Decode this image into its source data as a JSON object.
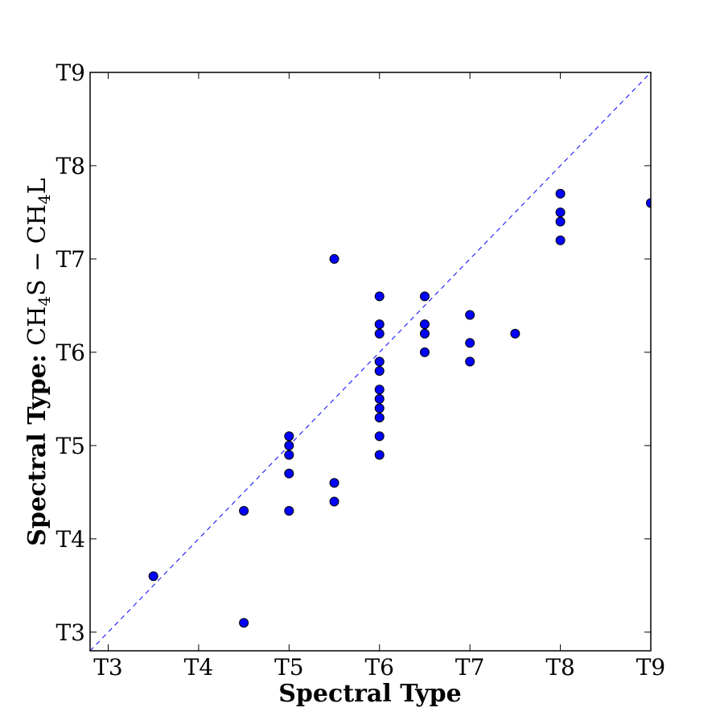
{
  "chart_data": {
    "type": "scatter",
    "title": "",
    "xlabel": "Spectral Type",
    "ylabel": {
      "bold": "Spectral Type: ",
      "math": [
        "CH",
        "4",
        "S − CH",
        "4",
        "L"
      ]
    },
    "xlim": [
      2.8,
      9.0
    ],
    "ylim": [
      2.8,
      9.0
    ],
    "ticks": [
      3,
      4,
      5,
      6,
      7,
      8,
      9
    ],
    "tick_labels": [
      "T3",
      "T4",
      "T5",
      "T6",
      "T7",
      "T8",
      "T9"
    ],
    "grid": false,
    "reference_line": {
      "from": [
        2.8,
        2.8
      ],
      "to": [
        9.0,
        9.0
      ],
      "style": "dashed",
      "color": "#0000ff"
    },
    "marker_color": "#0000ff",
    "points": [
      {
        "x": 3.5,
        "y": 3.6
      },
      {
        "x": 4.5,
        "y": 4.3
      },
      {
        "x": 4.5,
        "y": 3.1
      },
      {
        "x": 5.0,
        "y": 5.1
      },
      {
        "x": 5.0,
        "y": 5.0
      },
      {
        "x": 5.0,
        "y": 4.9
      },
      {
        "x": 5.0,
        "y": 4.7
      },
      {
        "x": 5.0,
        "y": 4.3
      },
      {
        "x": 5.5,
        "y": 7.0
      },
      {
        "x": 5.5,
        "y": 4.6
      },
      {
        "x": 5.5,
        "y": 4.4
      },
      {
        "x": 6.0,
        "y": 6.6
      },
      {
        "x": 6.0,
        "y": 6.3
      },
      {
        "x": 6.0,
        "y": 6.2
      },
      {
        "x": 6.0,
        "y": 5.9
      },
      {
        "x": 6.0,
        "y": 5.8
      },
      {
        "x": 6.0,
        "y": 5.6
      },
      {
        "x": 6.0,
        "y": 5.5
      },
      {
        "x": 6.0,
        "y": 5.4
      },
      {
        "x": 6.0,
        "y": 5.3
      },
      {
        "x": 6.0,
        "y": 5.1
      },
      {
        "x": 6.0,
        "y": 4.9
      },
      {
        "x": 6.5,
        "y": 6.6
      },
      {
        "x": 6.5,
        "y": 6.3
      },
      {
        "x": 6.5,
        "y": 6.2
      },
      {
        "x": 6.5,
        "y": 6.0
      },
      {
        "x": 7.0,
        "y": 6.4
      },
      {
        "x": 7.0,
        "y": 6.1
      },
      {
        "x": 7.0,
        "y": 5.9
      },
      {
        "x": 7.5,
        "y": 6.2
      },
      {
        "x": 8.0,
        "y": 7.7
      },
      {
        "x": 8.0,
        "y": 7.5
      },
      {
        "x": 8.0,
        "y": 7.4
      },
      {
        "x": 8.0,
        "y": 7.2
      },
      {
        "x": 9.0,
        "y": 7.6
      }
    ]
  }
}
